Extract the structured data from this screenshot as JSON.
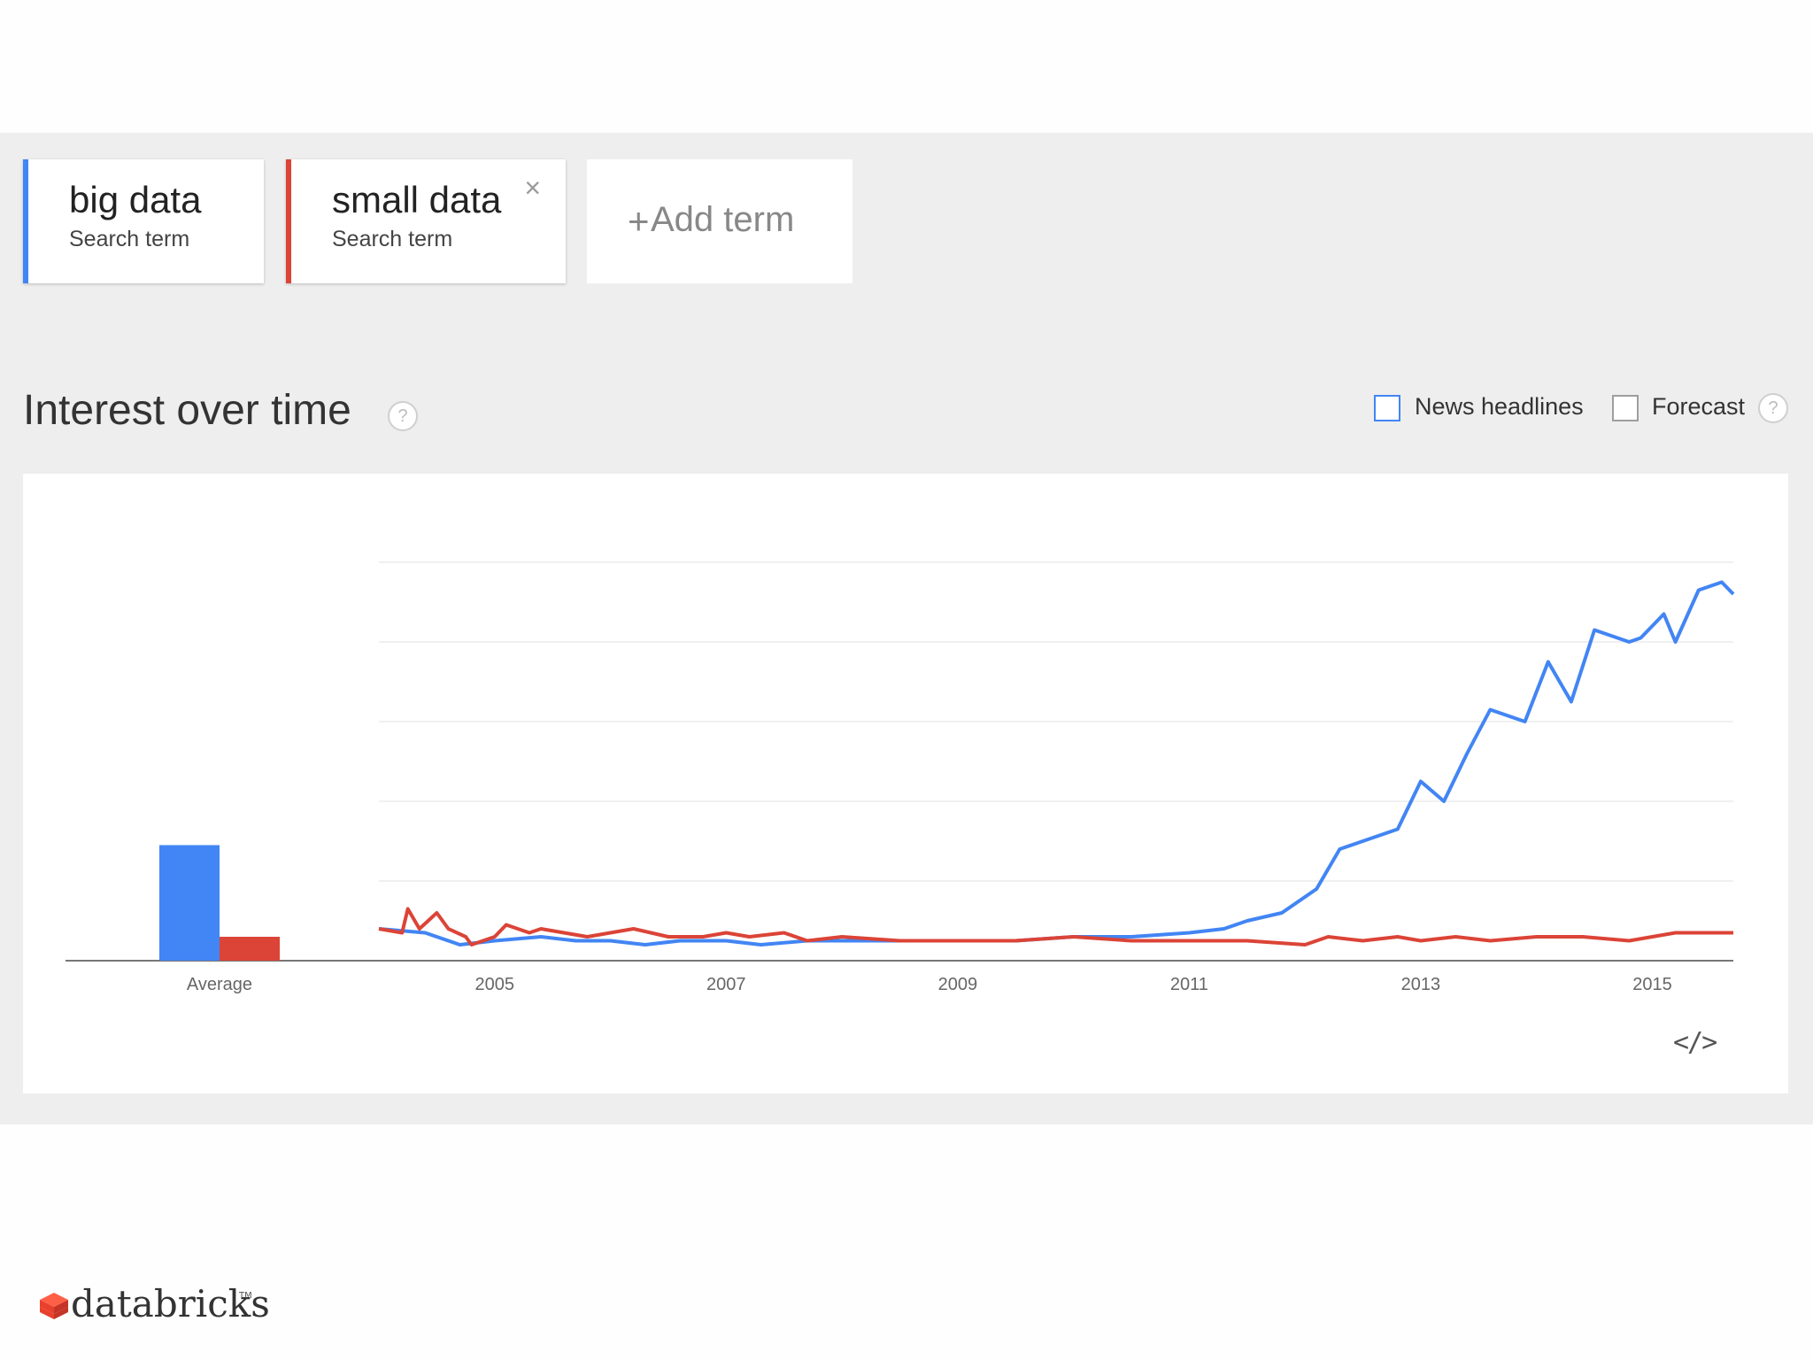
{
  "terms": [
    {
      "name": "big data",
      "subtitle": "Search term",
      "color": "#4285f4"
    },
    {
      "name": "small data",
      "subtitle": "Search term",
      "color": "#db4437"
    }
  ],
  "add_term": {
    "plus": "+",
    "label": "Add term"
  },
  "close_glyph": "×",
  "section": {
    "title": "Interest over time",
    "help_glyph": "?"
  },
  "options": {
    "news_headlines": {
      "label": "News headlines",
      "checked": false
    },
    "forecast": {
      "label": "Forecast",
      "checked": false
    },
    "help_glyph": "?"
  },
  "embed_glyph": "</>",
  "brand": {
    "name": "databricks",
    "tm": "TM",
    "color": "#e8402d"
  },
  "chart_data": {
    "type": "line",
    "title": "",
    "xlabel": "",
    "ylabel": "",
    "grid": true,
    "xticks": [
      2005,
      2007,
      2009,
      2011,
      2013,
      2015
    ],
    "xlim": [
      2004.0,
      2015.7
    ],
    "ylim": [
      0,
      100
    ],
    "average": {
      "label": "Average",
      "values": [
        {
          "name": "big data",
          "value": 29
        },
        {
          "name": "small data",
          "value": 6
        }
      ]
    },
    "series": [
      {
        "name": "big data",
        "color": "#4285f4",
        "points": [
          [
            2004.0,
            8
          ],
          [
            2004.4,
            7
          ],
          [
            2004.7,
            4
          ],
          [
            2005.0,
            5
          ],
          [
            2005.4,
            6
          ],
          [
            2005.7,
            5
          ],
          [
            2006.0,
            5
          ],
          [
            2006.3,
            4
          ],
          [
            2006.6,
            5
          ],
          [
            2007.0,
            5
          ],
          [
            2007.3,
            4
          ],
          [
            2007.7,
            5
          ],
          [
            2008.0,
            5
          ],
          [
            2008.5,
            5
          ],
          [
            2009.0,
            5
          ],
          [
            2009.5,
            5
          ],
          [
            2010.0,
            6
          ],
          [
            2010.5,
            6
          ],
          [
            2011.0,
            7
          ],
          [
            2011.3,
            8
          ],
          [
            2011.5,
            10
          ],
          [
            2011.8,
            12
          ],
          [
            2012.1,
            18
          ],
          [
            2012.3,
            28
          ],
          [
            2012.5,
            30
          ],
          [
            2012.8,
            33
          ],
          [
            2013.0,
            45
          ],
          [
            2013.2,
            40
          ],
          [
            2013.4,
            52
          ],
          [
            2013.6,
            63
          ],
          [
            2013.9,
            60
          ],
          [
            2014.1,
            75
          ],
          [
            2014.3,
            65
          ],
          [
            2014.5,
            83
          ],
          [
            2014.8,
            80
          ],
          [
            2014.9,
            81
          ],
          [
            2015.1,
            87
          ],
          [
            2015.2,
            80
          ],
          [
            2015.4,
            93
          ],
          [
            2015.6,
            95
          ],
          [
            2015.7,
            92
          ]
        ]
      },
      {
        "name": "small data",
        "color": "#db4437",
        "points": [
          [
            2004.0,
            8
          ],
          [
            2004.2,
            7
          ],
          [
            2004.25,
            13
          ],
          [
            2004.35,
            8
          ],
          [
            2004.5,
            12
          ],
          [
            2004.6,
            8
          ],
          [
            2004.75,
            6
          ],
          [
            2004.8,
            4
          ],
          [
            2005.0,
            6
          ],
          [
            2005.1,
            9
          ],
          [
            2005.3,
            7
          ],
          [
            2005.4,
            8
          ],
          [
            2005.6,
            7
          ],
          [
            2005.8,
            6
          ],
          [
            2006.0,
            7
          ],
          [
            2006.2,
            8
          ],
          [
            2006.5,
            6
          ],
          [
            2006.8,
            6
          ],
          [
            2007.0,
            7
          ],
          [
            2007.2,
            6
          ],
          [
            2007.5,
            7
          ],
          [
            2007.7,
            5
          ],
          [
            2008.0,
            6
          ],
          [
            2008.5,
            5
          ],
          [
            2009.0,
            5
          ],
          [
            2009.5,
            5
          ],
          [
            2010.0,
            6
          ],
          [
            2010.5,
            5
          ],
          [
            2011.0,
            5
          ],
          [
            2011.5,
            5
          ],
          [
            2012.0,
            4
          ],
          [
            2012.2,
            6
          ],
          [
            2012.5,
            5
          ],
          [
            2012.8,
            6
          ],
          [
            2013.0,
            5
          ],
          [
            2013.3,
            6
          ],
          [
            2013.6,
            5
          ],
          [
            2014.0,
            6
          ],
          [
            2014.4,
            6
          ],
          [
            2014.8,
            5
          ],
          [
            2015.2,
            7
          ],
          [
            2015.7,
            7
          ]
        ]
      }
    ]
  }
}
